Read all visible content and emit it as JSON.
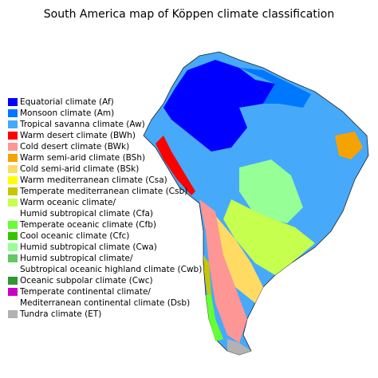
{
  "title": "South America map of Köppen climate classification",
  "legend": [
    {
      "lines": [
        "Equatorial climate (Af)"
      ],
      "color": "#0000fe"
    },
    {
      "lines": [
        "Monsoon climate (Am)"
      ],
      "color": "#0077ff"
    },
    {
      "lines": [
        "Tropical savanna climate (Aw)"
      ],
      "color": "#46a9fa"
    },
    {
      "lines": [
        "Warm desert climate (BWh)"
      ],
      "color": "#fe0000"
    },
    {
      "lines": [
        "Cold desert climate (BWk)"
      ],
      "color": "#fe9695"
    },
    {
      "lines": [
        "Warm semi-arid climate (BSh)"
      ],
      "color": "#f5a301"
    },
    {
      "lines": [
        "Cold semi-arid climate (BSk)"
      ],
      "color": "#ffdb63"
    },
    {
      "lines": [
        "Warm mediterranean climate (Csa)"
      ],
      "color": "#ffff00"
    },
    {
      "lines": [
        "Temperate mediterranean climate (Csb)"
      ],
      "color": "#c6c700"
    },
    {
      "lines": [
        "Warm oceanic climate/",
        "Humid subtropical climate (Cfa)"
      ],
      "color": "#c6ff4e"
    },
    {
      "lines": [
        "Temperate oceanic climate (Cfb)"
      ],
      "color": "#66ff33"
    },
    {
      "lines": [
        "Cool oceanic climate (Cfc)"
      ],
      "color": "#33c701"
    },
    {
      "lines": [
        "Humid subtropical climate (Cwa)"
      ],
      "color": "#96ff96"
    },
    {
      "lines": [
        "Humid subtropical climate/",
        "Subtropical oceanic highland climate (Cwb)"
      ],
      "color": "#63c764"
    },
    {
      "lines": [
        "Oceanic subpolar climate (Cwc)"
      ],
      "color": "#329633"
    },
    {
      "lines": [
        "Temperate continental climate/",
        "Mediterranean continental climate (Dsb)"
      ],
      "color": "#c800c8"
    },
    {
      "lines": [
        "Tundra climate (ET)"
      ],
      "color": "#b2b2b2"
    }
  ]
}
